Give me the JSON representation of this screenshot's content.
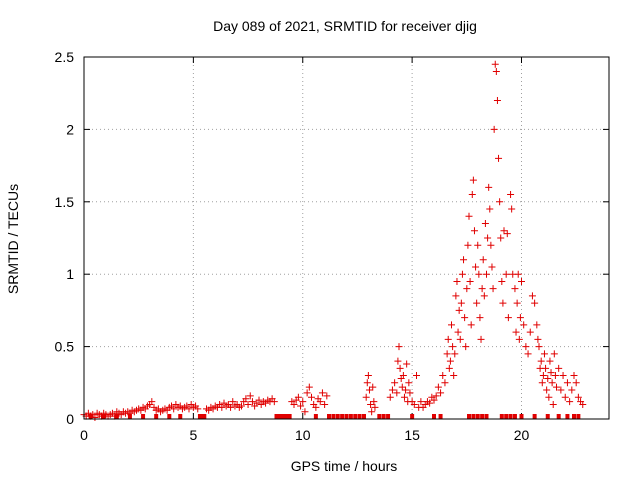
{
  "chart_data": {
    "type": "scatter",
    "title": "Day 089 of 2021, SRMTID for receiver djig",
    "xlabel": "GPS time / hours",
    "ylabel": "SRMTID / TECUs",
    "xlim": [
      0,
      24
    ],
    "ylim": [
      0,
      2.5
    ],
    "xticks": [
      0,
      5,
      10,
      15,
      20
    ],
    "yticks": [
      0,
      0.5,
      1,
      1.5,
      2,
      2.5
    ],
    "xtick_labels": [
      "0",
      "5",
      "10",
      "15",
      "20"
    ],
    "ytick_labels": [
      "0",
      "0.5",
      "1",
      "1.5",
      "2",
      "2.5"
    ],
    "grid": true,
    "marker": "+",
    "color": "#e00000",
    "series": [
      {
        "name": "SRMTID",
        "points": [
          [
            0.0,
            0.03
          ],
          [
            0.1,
            0.02
          ],
          [
            0.2,
            0.04
          ],
          [
            0.3,
            0.02
          ],
          [
            0.4,
            0.03
          ],
          [
            0.5,
            0.01
          ],
          [
            0.6,
            0.04
          ],
          [
            0.7,
            0.03
          ],
          [
            0.8,
            0.02
          ],
          [
            0.9,
            0.04
          ],
          [
            1.0,
            0.03
          ],
          [
            1.1,
            0.02
          ],
          [
            1.2,
            0.03
          ],
          [
            1.3,
            0.04
          ],
          [
            1.4,
            0.02
          ],
          [
            1.5,
            0.05
          ],
          [
            1.6,
            0.04
          ],
          [
            1.7,
            0.03
          ],
          [
            1.8,
            0.05
          ],
          [
            1.9,
            0.04
          ],
          [
            2.0,
            0.05
          ],
          [
            2.1,
            0.04
          ],
          [
            2.2,
            0.06
          ],
          [
            2.3,
            0.05
          ],
          [
            2.4,
            0.06
          ],
          [
            2.5,
            0.07
          ],
          [
            2.6,
            0.06
          ],
          [
            2.7,
            0.08
          ],
          [
            2.8,
            0.07
          ],
          [
            2.9,
            0.09
          ],
          [
            3.0,
            0.1
          ],
          [
            3.1,
            0.12
          ],
          [
            3.2,
            0.08
          ],
          [
            3.3,
            0.06
          ],
          [
            3.4,
            0.07
          ],
          [
            3.5,
            0.05
          ],
          [
            3.6,
            0.06
          ],
          [
            3.7,
            0.07
          ],
          [
            3.8,
            0.06
          ],
          [
            3.9,
            0.08
          ],
          [
            4.0,
            0.09
          ],
          [
            4.1,
            0.07
          ],
          [
            4.2,
            0.1
          ],
          [
            4.3,
            0.08
          ],
          [
            4.4,
            0.09
          ],
          [
            4.5,
            0.07
          ],
          [
            4.6,
            0.08
          ],
          [
            4.7,
            0.09
          ],
          [
            4.8,
            0.07
          ],
          [
            4.9,
            0.1
          ],
          [
            5.0,
            0.08
          ],
          [
            5.1,
            0.09
          ],
          [
            5.2,
            0.07
          ],
          [
            5.6,
            0.07
          ],
          [
            5.7,
            0.06
          ],
          [
            5.8,
            0.08
          ],
          [
            5.9,
            0.07
          ],
          [
            6.0,
            0.09
          ],
          [
            6.1,
            0.08
          ],
          [
            6.2,
            0.1
          ],
          [
            6.3,
            0.08
          ],
          [
            6.4,
            0.11
          ],
          [
            6.5,
            0.09
          ],
          [
            6.6,
            0.1
          ],
          [
            6.7,
            0.08
          ],
          [
            6.8,
            0.12
          ],
          [
            6.9,
            0.09
          ],
          [
            7.0,
            0.1
          ],
          [
            7.1,
            0.08
          ],
          [
            7.2,
            0.09
          ],
          [
            7.3,
            0.12
          ],
          [
            7.4,
            0.14
          ],
          [
            7.5,
            0.1
          ],
          [
            7.6,
            0.16
          ],
          [
            7.7,
            0.12
          ],
          [
            7.8,
            0.09
          ],
          [
            7.9,
            0.11
          ],
          [
            8.0,
            0.13
          ],
          [
            8.1,
            0.1
          ],
          [
            8.2,
            0.12
          ],
          [
            8.3,
            0.11
          ],
          [
            8.4,
            0.13
          ],
          [
            8.5,
            0.12
          ],
          [
            8.6,
            0.14
          ],
          [
            8.7,
            0.12
          ],
          [
            9.5,
            0.12
          ],
          [
            9.6,
            0.1
          ],
          [
            9.7,
            0.13
          ],
          [
            9.8,
            0.15
          ],
          [
            9.9,
            0.09
          ],
          [
            10.0,
            0.12
          ],
          [
            10.1,
            0.05
          ],
          [
            10.2,
            0.18
          ],
          [
            10.3,
            0.22
          ],
          [
            10.4,
            0.15
          ],
          [
            10.5,
            0.1
          ],
          [
            10.6,
            0.08
          ],
          [
            10.7,
            0.14
          ],
          [
            10.8,
            0.12
          ],
          [
            10.9,
            0.18
          ],
          [
            11.0,
            0.1
          ],
          [
            11.1,
            0.16
          ],
          [
            12.9,
            0.15
          ],
          [
            12.95,
            0.25
          ],
          [
            13.0,
            0.3
          ],
          [
            13.05,
            0.2
          ],
          [
            13.1,
            0.1
          ],
          [
            13.15,
            0.05
          ],
          [
            13.2,
            0.22
          ],
          [
            13.25,
            0.12
          ],
          [
            13.3,
            0.08
          ],
          [
            14.0,
            0.15
          ],
          [
            14.1,
            0.2
          ],
          [
            14.2,
            0.25
          ],
          [
            14.3,
            0.18
          ],
          [
            14.35,
            0.4
          ],
          [
            14.4,
            0.5
          ],
          [
            14.45,
            0.35
          ],
          [
            14.5,
            0.28
          ],
          [
            14.55,
            0.22
          ],
          [
            14.6,
            0.3
          ],
          [
            14.65,
            0.15
          ],
          [
            14.7,
            0.2
          ],
          [
            14.75,
            0.38
          ],
          [
            14.8,
            0.12
          ],
          [
            14.85,
            0.25
          ],
          [
            14.9,
            0.18
          ],
          [
            15.0,
            0.12
          ],
          [
            15.1,
            0.1
          ],
          [
            15.2,
            0.3
          ],
          [
            15.3,
            0.08
          ],
          [
            15.4,
            0.12
          ],
          [
            15.5,
            0.08
          ],
          [
            15.6,
            0.1
          ],
          [
            15.7,
            0.12
          ],
          [
            15.8,
            0.11
          ],
          [
            15.9,
            0.15
          ],
          [
            16.0,
            0.13
          ],
          [
            16.1,
            0.16
          ],
          [
            16.2,
            0.22
          ],
          [
            16.3,
            0.18
          ],
          [
            16.4,
            0.3
          ],
          [
            16.5,
            0.25
          ],
          [
            16.6,
            0.45
          ],
          [
            16.65,
            0.55
          ],
          [
            16.7,
            0.35
          ],
          [
            16.75,
            0.4
          ],
          [
            16.8,
            0.65
          ],
          [
            16.85,
            0.5
          ],
          [
            16.9,
            0.3
          ],
          [
            16.95,
            0.45
          ],
          [
            17.0,
            0.85
          ],
          [
            17.05,
            0.95
          ],
          [
            17.1,
            0.6
          ],
          [
            17.15,
            0.75
          ],
          [
            17.2,
            0.55
          ],
          [
            17.25,
            0.8
          ],
          [
            17.3,
            1.0
          ],
          [
            17.35,
            1.1
          ],
          [
            17.4,
            0.7
          ],
          [
            17.45,
            0.5
          ],
          [
            17.5,
            0.9
          ],
          [
            17.55,
            1.2
          ],
          [
            17.6,
            1.4
          ],
          [
            17.65,
            0.95
          ],
          [
            17.7,
            0.65
          ],
          [
            17.75,
            1.55
          ],
          [
            17.8,
            1.65
          ],
          [
            17.85,
            1.3
          ],
          [
            17.9,
            1.05
          ],
          [
            17.95,
            0.8
          ],
          [
            18.0,
            1.2
          ],
          [
            18.05,
            1.0
          ],
          [
            18.1,
            0.7
          ],
          [
            18.15,
            0.55
          ],
          [
            18.2,
            0.9
          ],
          [
            18.25,
            1.1
          ],
          [
            18.3,
            0.85
          ],
          [
            18.35,
            1.35
          ],
          [
            18.4,
            1.0
          ],
          [
            18.45,
            1.25
          ],
          [
            18.5,
            1.6
          ],
          [
            18.55,
            1.45
          ],
          [
            18.6,
            1.2
          ],
          [
            18.65,
            1.05
          ],
          [
            18.7,
            0.9
          ],
          [
            18.75,
            2.0
          ],
          [
            18.8,
            2.45
          ],
          [
            18.85,
            2.4
          ],
          [
            18.9,
            2.2
          ],
          [
            18.95,
            1.8
          ],
          [
            19.0,
            1.5
          ],
          [
            19.05,
            1.25
          ],
          [
            19.1,
            0.95
          ],
          [
            19.15,
            0.8
          ],
          [
            19.2,
            1.3
          ],
          [
            19.3,
            1.0
          ],
          [
            19.35,
            1.28
          ],
          [
            19.4,
            0.7
          ],
          [
            19.5,
            1.55
          ],
          [
            19.55,
            1.45
          ],
          [
            19.6,
            1.0
          ],
          [
            19.7,
            0.9
          ],
          [
            19.75,
            0.6
          ],
          [
            19.8,
            0.8
          ],
          [
            19.85,
            1.0
          ],
          [
            19.9,
            0.55
          ],
          [
            19.95,
            0.7
          ],
          [
            20.0,
            0.95
          ],
          [
            20.1,
            0.65
          ],
          [
            20.2,
            0.5
          ],
          [
            20.3,
            0.45
          ],
          [
            20.4,
            0.6
          ],
          [
            20.5,
            0.85
          ],
          [
            20.6,
            0.8
          ],
          [
            20.7,
            0.65
          ],
          [
            20.75,
            0.55
          ],
          [
            20.8,
            0.5
          ],
          [
            20.85,
            0.35
          ],
          [
            20.9,
            0.4
          ],
          [
            20.95,
            0.25
          ],
          [
            21.0,
            0.3
          ],
          [
            21.05,
            0.45
          ],
          [
            21.1,
            0.35
          ],
          [
            21.15,
            0.2
          ],
          [
            21.2,
            0.28
          ],
          [
            21.25,
            0.15
          ],
          [
            21.3,
            0.4
          ],
          [
            21.35,
            0.32
          ],
          [
            21.4,
            0.25
          ],
          [
            21.45,
            0.1
          ],
          [
            21.5,
            0.45
          ],
          [
            21.55,
            0.3
          ],
          [
            21.6,
            0.22
          ],
          [
            21.7,
            0.35
          ],
          [
            21.8,
            0.2
          ],
          [
            21.9,
            0.3
          ],
          [
            22.0,
            0.15
          ],
          [
            22.1,
            0.25
          ],
          [
            22.2,
            0.12
          ],
          [
            22.3,
            0.2
          ],
          [
            22.4,
            0.3
          ],
          [
            22.5,
            0.25
          ],
          [
            22.6,
            0.15
          ],
          [
            22.7,
            0.12
          ],
          [
            22.8,
            0.1
          ]
        ]
      }
    ],
    "zero_level_marks_x": [
      0.3,
      0.9,
      1.5,
      2.1,
      2.7,
      3.3,
      3.9,
      4.4,
      5.3,
      5.4,
      5.5,
      8.8,
      8.9,
      9.0,
      9.1,
      9.2,
      9.3,
      9.4,
      10.6,
      11.2,
      11.4,
      11.6,
      11.8,
      12.0,
      12.2,
      12.4,
      12.6,
      12.8,
      13.5,
      13.7,
      13.9,
      15.0,
      16.0,
      16.3,
      17.6,
      17.8,
      18.0,
      18.2,
      18.4,
      19.1,
      19.3,
      19.5,
      19.7,
      20.0,
      20.6,
      21.2,
      21.7,
      22.1,
      22.4,
      22.6
    ]
  }
}
